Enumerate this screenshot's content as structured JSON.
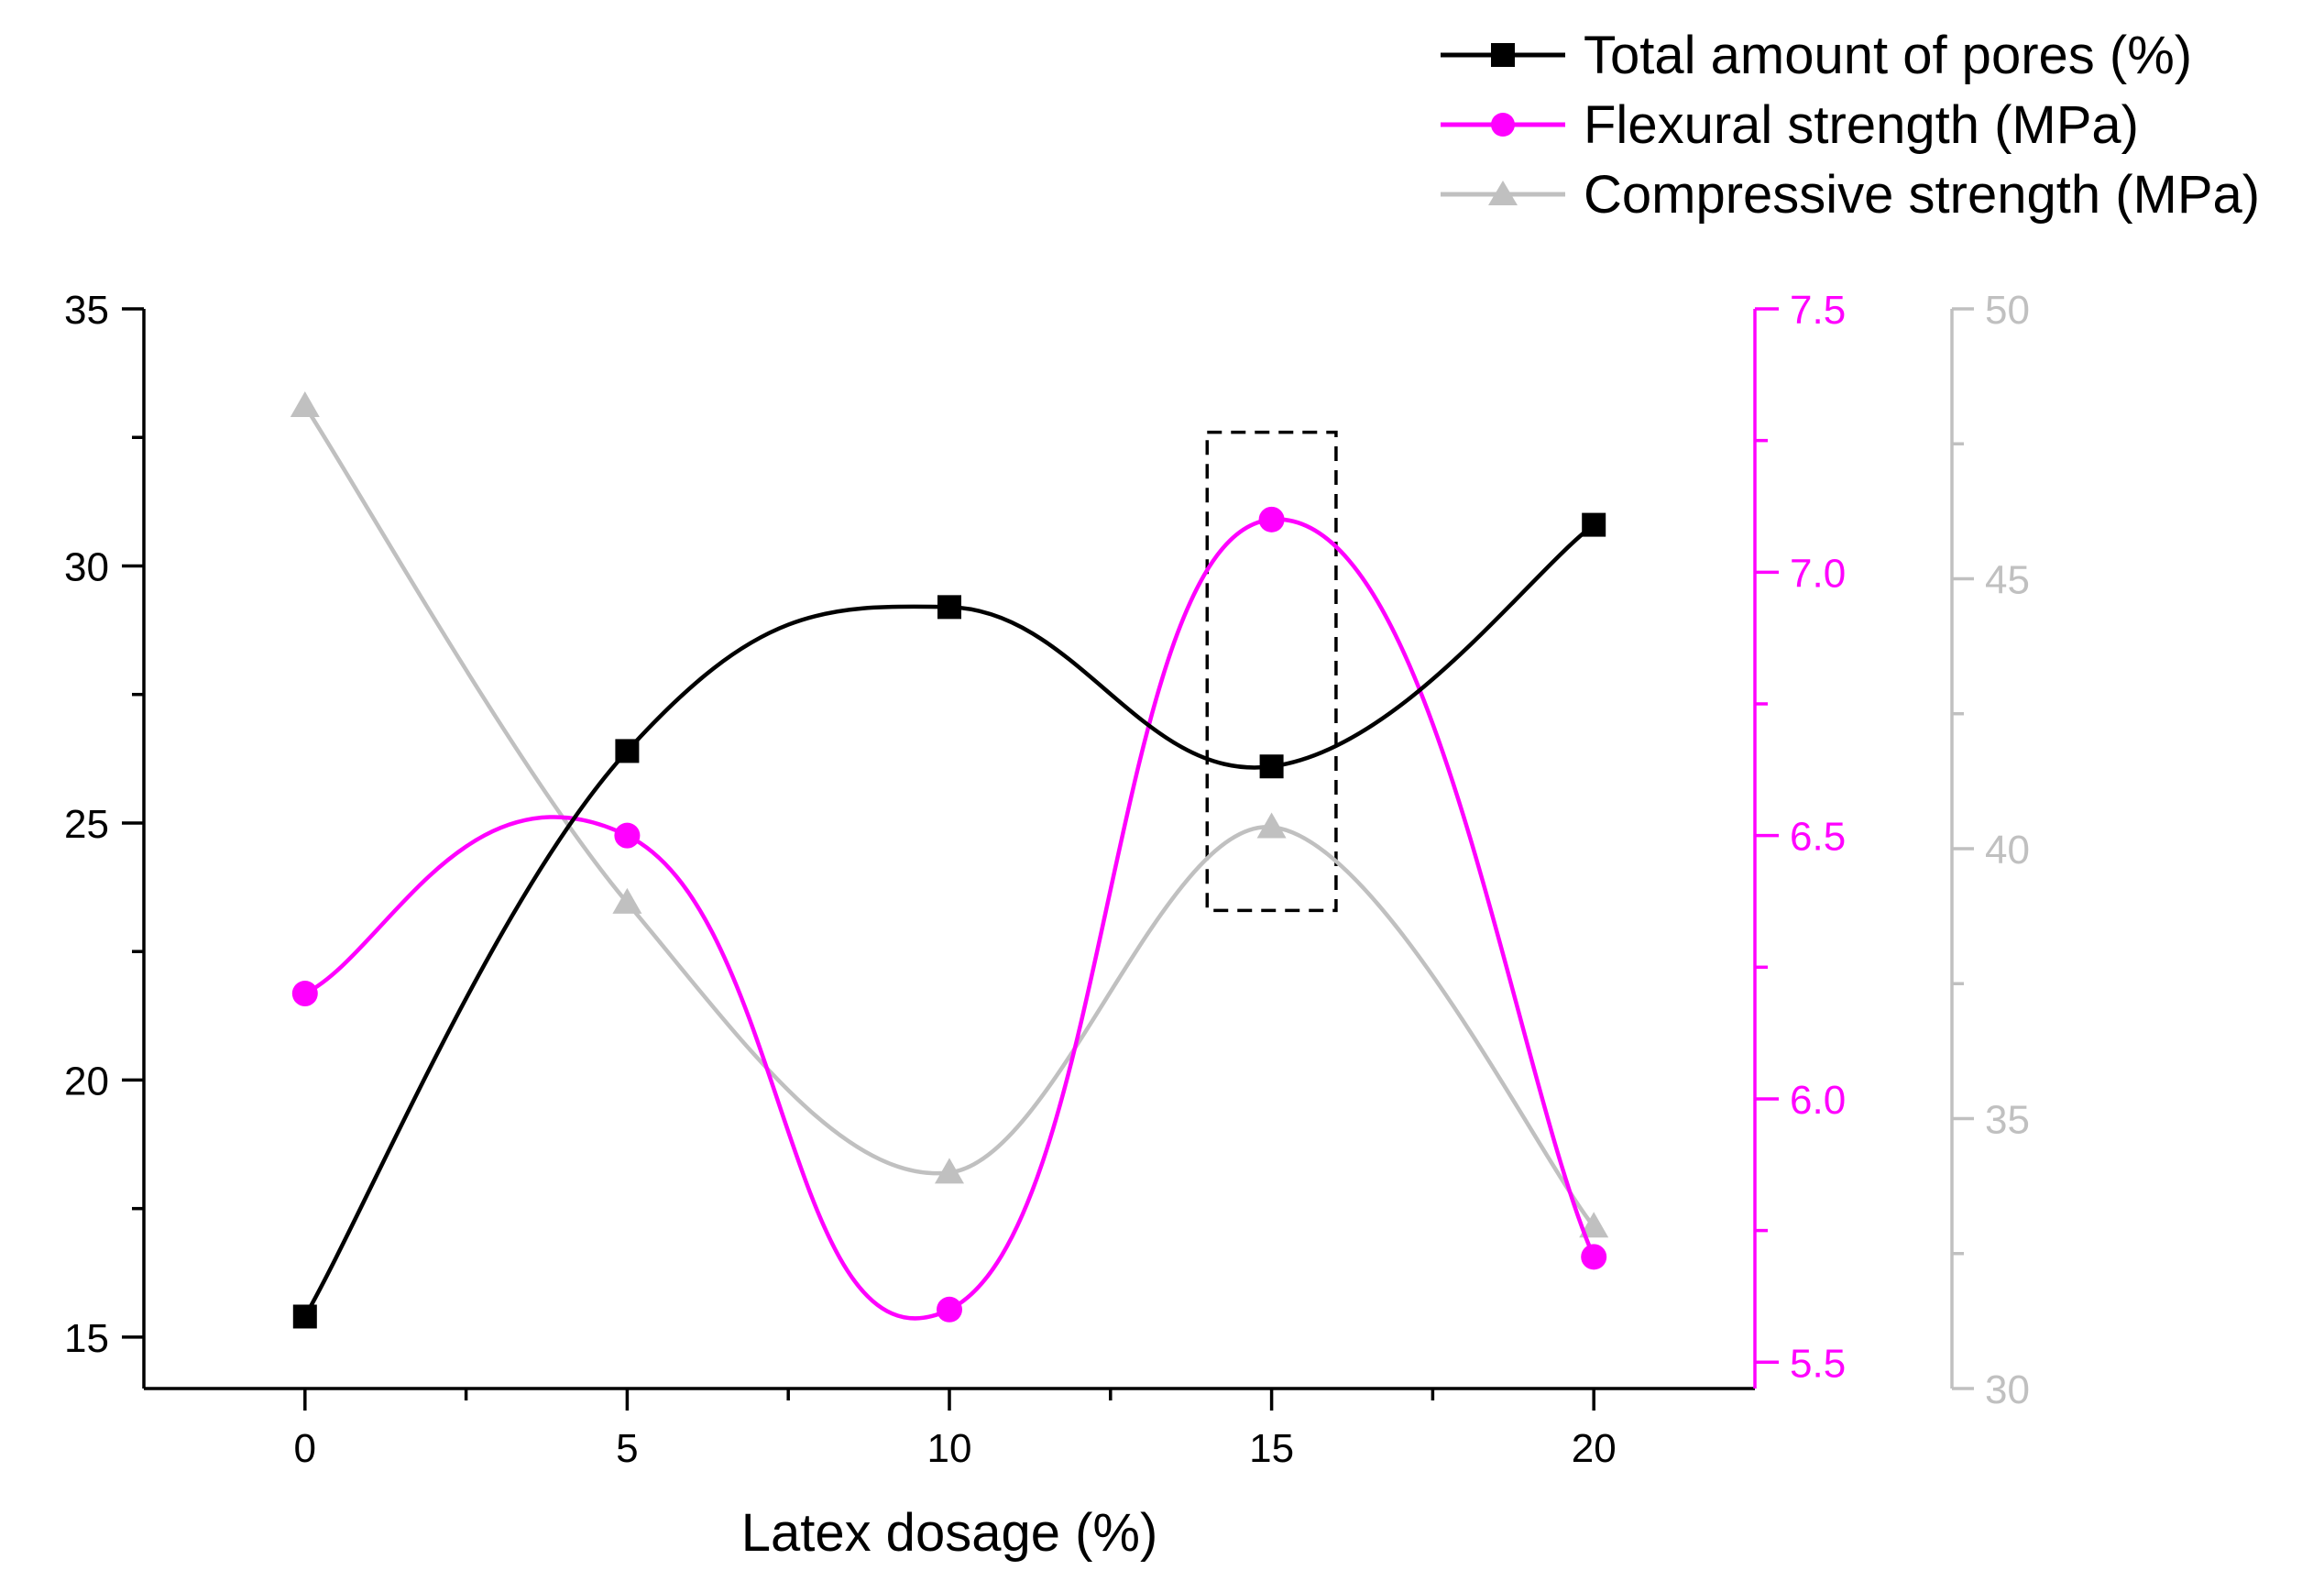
{
  "colors": {
    "pores": "#000000",
    "flexural": "#ff00ff",
    "compressive": "#c0c0c0",
    "axis": "#000000"
  },
  "chart_data": {
    "type": "line",
    "xlabel": "Latex dosage (%)",
    "x": [
      0,
      5,
      10,
      15,
      20
    ],
    "xlim": [
      -2.5,
      22.5
    ],
    "x_ticks": [
      "0",
      "5",
      "10",
      "15",
      "20"
    ],
    "highlight_box": {
      "x_range": [
        14,
        16
      ],
      "y_range": [
        23.3,
        32.6
      ],
      "style": "dashed"
    },
    "series": [
      {
        "name": "Total amount of pores (%)",
        "axis": "left",
        "marker": "square",
        "values": [
          15.4,
          26.4,
          29.2,
          26.1,
          30.8
        ]
      },
      {
        "name": "Flexural strength (MPa)",
        "axis": "right1",
        "marker": "circle",
        "values": [
          6.2,
          6.5,
          5.6,
          7.1,
          5.7
        ]
      },
      {
        "name": "Compressive strength (MPa)",
        "axis": "right2",
        "marker": "triangle",
        "values": [
          48.2,
          39.0,
          34.0,
          40.4,
          33.0
        ]
      }
    ],
    "axes": {
      "left": {
        "ylim": [
          14,
          35
        ],
        "ticks": [
          "15",
          "20",
          "25",
          "30",
          "35"
        ]
      },
      "right1": {
        "ylim": [
          5.45,
          7.5
        ],
        "ticks": [
          "5.5",
          "6.0",
          "6.5",
          "7.0",
          "7.5"
        ]
      },
      "right2": {
        "ylim": [
          30,
          50
        ],
        "ticks": [
          "30",
          "35",
          "40",
          "45",
          "50"
        ]
      }
    },
    "legend": {
      "position": "top-right",
      "entries": [
        "Total amount of pores (%)",
        "Flexural strength (MPa)",
        "Compressive strength (MPa)"
      ]
    }
  }
}
